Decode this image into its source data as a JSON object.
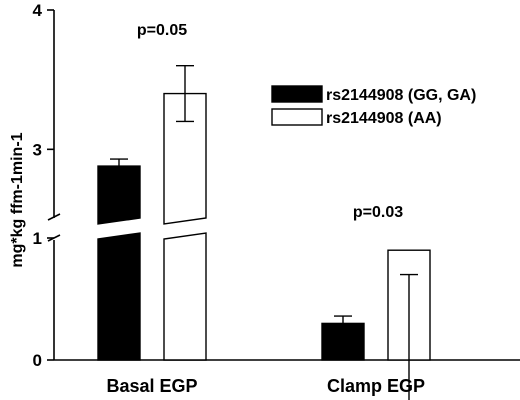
{
  "chart_data": {
    "type": "bar",
    "title": "",
    "ylabel": "mg*kg ffm-1min-1",
    "xlabel": "",
    "categories": [
      "Basal EGP",
      "Clamp EGP"
    ],
    "y_ticks": [
      "0",
      "1",
      "3",
      "4"
    ],
    "axis_break": {
      "from": 1,
      "to": 2.5
    },
    "ylim": [
      0,
      4
    ],
    "legend_position": "right",
    "series": [
      {
        "name": "rs2144908 (GG, GA)",
        "values": [
          2.88,
          0.3
        ],
        "errors": [
          0.05,
          0.06
        ],
        "fill": "#000000"
      },
      {
        "name": "rs2144908 (AA)",
        "values": [
          3.4,
          0.9
        ],
        "errors": [
          0.2,
          0.2
        ],
        "fill": "#ffffff"
      }
    ],
    "annotations": [
      "p=0.05",
      "p=0.03"
    ]
  }
}
